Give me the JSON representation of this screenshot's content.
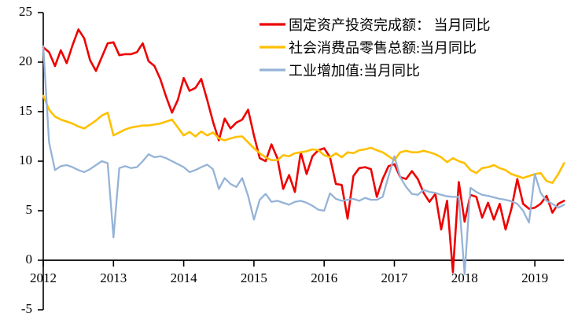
{
  "chart_data": {
    "type": "line",
    "title": "",
    "grid": false,
    "legend_position": "top-center",
    "x_axis": {
      "start_year": 2012,
      "months_per_step": 1,
      "tick_labels": [
        "2012",
        "2013",
        "2014",
        "2015",
        "2016",
        "2017",
        "2018",
        "2019"
      ],
      "range": [
        2012.0,
        2019.45
      ]
    },
    "y_axis": {
      "ticks": [
        25,
        20,
        15,
        10,
        5,
        0,
        -5
      ],
      "tick_labels": [
        "25",
        "20",
        "15",
        "10",
        "5",
        "0",
        "-5"
      ],
      "min": -5,
      "max": 25
    },
    "series": [
      {
        "name": "固定资产投资完成额： 当月同比",
        "color": "#ee0000",
        "values": [
          21.5,
          21.0,
          19.6,
          21.2,
          19.9,
          21.7,
          23.3,
          22.4,
          20.2,
          19.1,
          20.5,
          21.9,
          22.0,
          20.7,
          20.8,
          20.8,
          21.0,
          21.9,
          20.1,
          19.6,
          18.3,
          16.5,
          14.9,
          16.2,
          18.4,
          17.1,
          17.4,
          18.3,
          16.2,
          14.0,
          12.1,
          14.3,
          13.3,
          13.9,
          14.2,
          15.2,
          12.6,
          10.3,
          10.0,
          11.7,
          10.3,
          7.2,
          8.6,
          6.9,
          10.9,
          8.7,
          10.5,
          11.1,
          11.3,
          10.4,
          7.7,
          7.6,
          4.2,
          8.5,
          9.3,
          9.4,
          9.2,
          6.4,
          8.2,
          9.5,
          9.7,
          8.4,
          8.2,
          9.0,
          8.2,
          6.8,
          5.9,
          6.7,
          3.1,
          6.0,
          -1.2,
          7.9,
          3.9,
          6.6,
          6.4,
          4.3,
          5.8,
          4.1,
          5.7,
          3.1,
          5.2,
          8.2,
          5.7,
          5.2,
          5.3,
          5.7,
          6.5,
          4.8,
          5.7,
          6.0
        ]
      },
      {
        "name": "社会消费品零售总额:当月同比",
        "color": "#ffc000",
        "values": [
          16.6,
          15.2,
          14.5,
          14.2,
          14.0,
          13.8,
          13.5,
          13.3,
          13.7,
          14.1,
          14.6,
          14.9,
          12.6,
          12.9,
          13.2,
          13.4,
          13.5,
          13.6,
          13.6,
          13.7,
          13.8,
          14.0,
          14.2,
          13.4,
          12.6,
          12.95,
          12.5,
          13.0,
          12.6,
          12.9,
          12.3,
          12.1,
          12.3,
          12.45,
          12.5,
          11.9,
          11.3,
          10.8,
          10.4,
          10.1,
          10.1,
          10.6,
          10.5,
          10.8,
          10.9,
          11.0,
          11.2,
          11.1,
          10.6,
          10.4,
          10.8,
          10.4,
          10.9,
          10.8,
          11.1,
          11.2,
          11.35,
          11.1,
          10.9,
          10.5,
          10.1,
          10.9,
          11.05,
          10.9,
          10.9,
          11.05,
          10.9,
          10.7,
          10.4,
          9.9,
          10.3,
          10.0,
          9.8,
          9.1,
          8.8,
          9.3,
          9.4,
          9.6,
          9.3,
          9.1,
          8.7,
          8.5,
          8.3,
          8.5,
          8.7,
          8.8,
          8.0,
          7.8,
          8.7,
          9.8
        ]
      },
      {
        "name": "工业增加值:当月同比",
        "color": "#95b3d7",
        "values": [
          21.6,
          11.9,
          9.1,
          9.5,
          9.6,
          9.4,
          9.1,
          8.9,
          9.2,
          9.6,
          10.0,
          9.8,
          2.3,
          9.3,
          9.5,
          9.3,
          9.4,
          10.0,
          10.7,
          10.4,
          10.5,
          10.3,
          10.0,
          9.7,
          9.4,
          8.9,
          9.1,
          9.4,
          9.65,
          9.2,
          7.2,
          8.3,
          7.7,
          7.4,
          8.3,
          6.5,
          4.1,
          6.1,
          6.7,
          5.9,
          6.0,
          5.8,
          5.6,
          5.9,
          6.0,
          5.8,
          5.5,
          5.1,
          5.0,
          6.75,
          6.2,
          6.0,
          6.1,
          6.2,
          6.0,
          6.3,
          6.1,
          6.1,
          6.4,
          8.5,
          10.5,
          8.4,
          7.4,
          6.7,
          6.6,
          7.1,
          6.9,
          6.8,
          6.6,
          6.45,
          6.4,
          6.4,
          -1.4,
          7.3,
          6.9,
          6.6,
          6.5,
          6.35,
          6.2,
          6.1,
          5.95,
          5.7,
          5.0,
          3.8,
          8.7,
          6.8,
          6.0,
          5.7,
          5.3,
          5.6
        ]
      }
    ]
  }
}
